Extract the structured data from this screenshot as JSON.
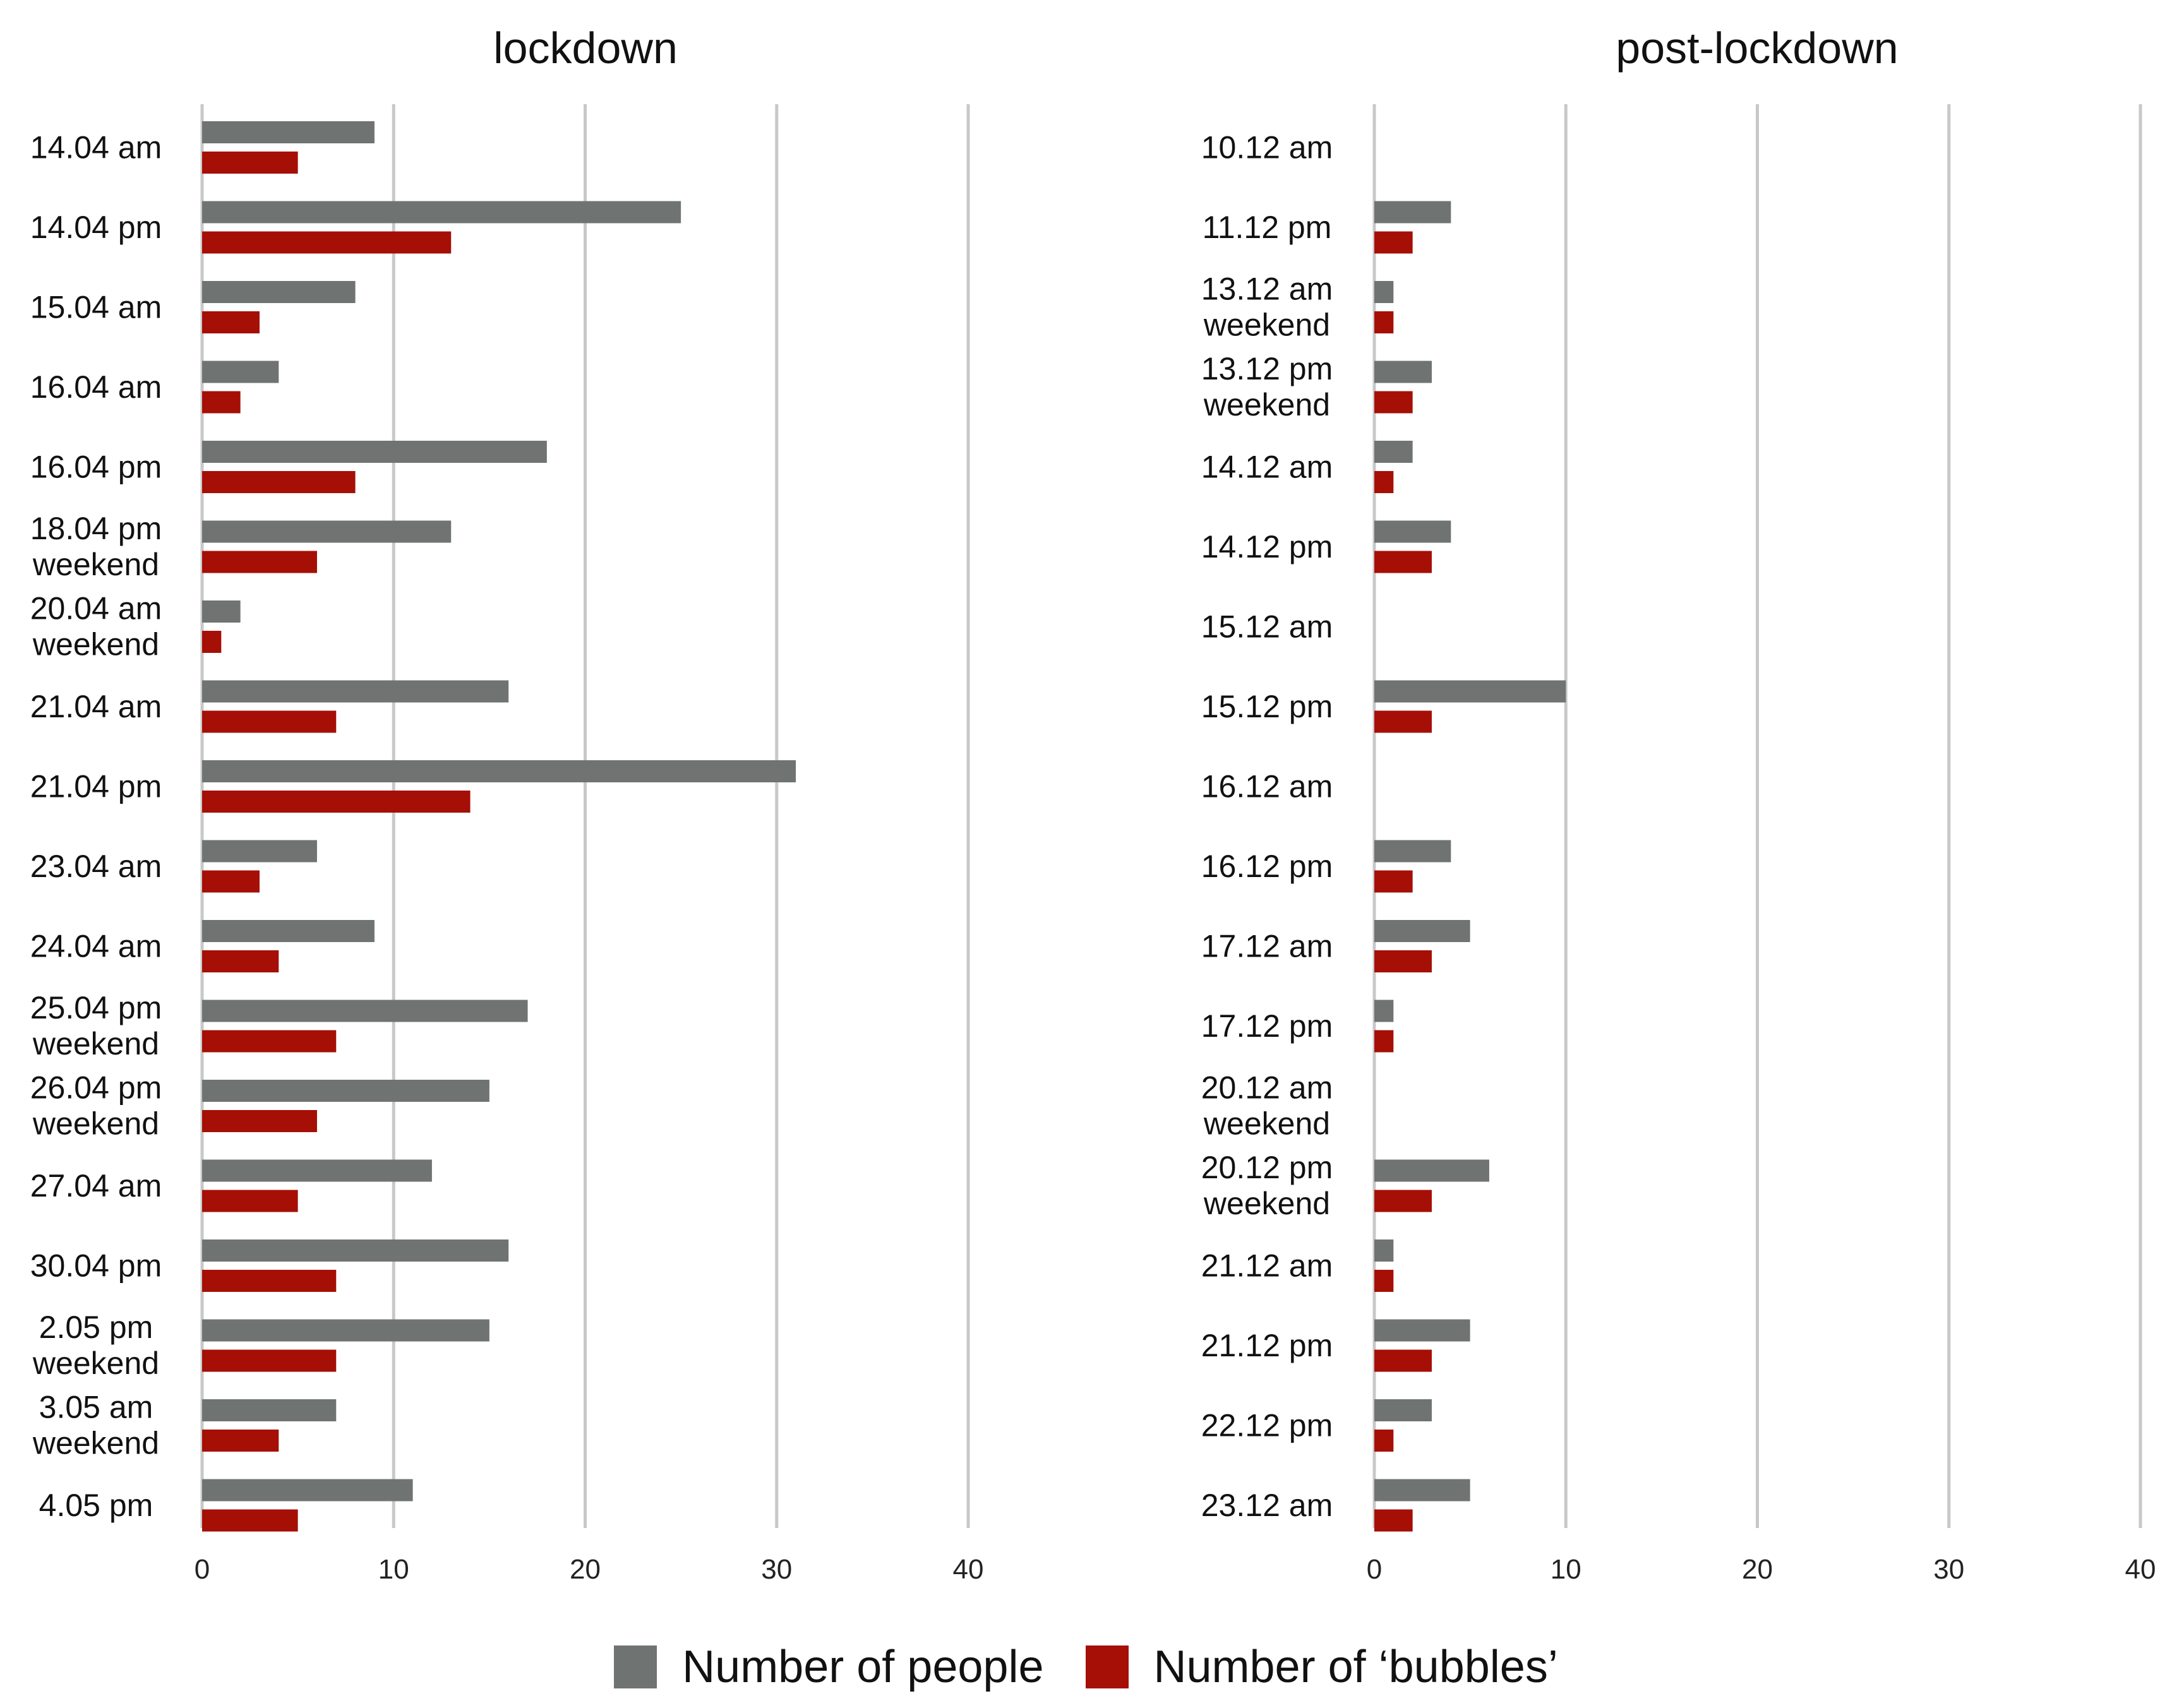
{
  "chart_data": [
    {
      "type": "bar",
      "orientation": "horizontal",
      "title": "lockdown",
      "xlabel": "",
      "ylabel": "",
      "xlim": [
        0,
        40
      ],
      "x_ticks": [
        0,
        10,
        20,
        30,
        40
      ],
      "grid": true,
      "categories": [
        [
          "14.04 am"
        ],
        [
          "14.04 pm"
        ],
        [
          "15.04 am"
        ],
        [
          "16.04 am"
        ],
        [
          "16.04 pm"
        ],
        [
          "18.04 pm",
          "weekend"
        ],
        [
          "20.04 am",
          "weekend"
        ],
        [
          "21.04 am"
        ],
        [
          "21.04 pm"
        ],
        [
          "23.04 am"
        ],
        [
          "24.04 am"
        ],
        [
          "25.04 pm",
          "weekend"
        ],
        [
          "26.04 pm",
          "weekend"
        ],
        [
          "27.04 am"
        ],
        [
          "30.04 pm"
        ],
        [
          "2.05 pm",
          "weekend"
        ],
        [
          "3.05 am",
          "weekend"
        ],
        [
          "4.05 pm"
        ]
      ],
      "series": [
        {
          "name": "Number of people",
          "color": "#6f7371",
          "values": [
            9,
            25,
            8,
            4,
            18,
            13,
            2,
            16,
            31,
            6,
            9,
            17,
            15,
            12,
            16,
            15,
            7,
            11
          ]
        },
        {
          "name": "Number of ‘bubbles’",
          "color": "#a50f06",
          "values": [
            5,
            13,
            3,
            2,
            8,
            6,
            1,
            7,
            14,
            3,
            4,
            7,
            6,
            5,
            7,
            7,
            4,
            5
          ]
        }
      ]
    },
    {
      "type": "bar",
      "orientation": "horizontal",
      "title": "post-lockdown",
      "xlabel": "",
      "ylabel": "",
      "xlim": [
        0,
        40
      ],
      "x_ticks": [
        0,
        10,
        20,
        30,
        40
      ],
      "grid": true,
      "categories": [
        [
          "10.12 am"
        ],
        [
          "11.12 pm"
        ],
        [
          "13.12 am",
          "weekend"
        ],
        [
          "13.12 pm",
          "weekend"
        ],
        [
          "14.12 am"
        ],
        [
          "14.12 pm"
        ],
        [
          "15.12 am"
        ],
        [
          "15.12 pm"
        ],
        [
          "16.12 am"
        ],
        [
          "16.12 pm"
        ],
        [
          "17.12 am"
        ],
        [
          "17.12 pm"
        ],
        [
          "20.12 am",
          "weekend"
        ],
        [
          "20.12 pm",
          "weekend"
        ],
        [
          "21.12 am"
        ],
        [
          "21.12 pm"
        ],
        [
          "22.12 pm"
        ],
        [
          "23.12 am"
        ]
      ],
      "series": [
        {
          "name": "Number of people",
          "color": "#6f7371",
          "values": [
            0,
            4,
            1,
            3,
            2,
            4,
            0,
            10,
            0,
            4,
            5,
            1,
            0,
            6,
            1,
            5,
            3,
            5
          ]
        },
        {
          "name": "Number of ‘bubbles’",
          "color": "#a50f06",
          "values": [
            0,
            2,
            1,
            2,
            1,
            3,
            0,
            3,
            0,
            2,
            3,
            1,
            0,
            3,
            1,
            3,
            1,
            2
          ]
        }
      ]
    }
  ],
  "legend": {
    "items": [
      {
        "label": "Number of people",
        "color": "#6f7371"
      },
      {
        "label": "Number of ‘bubbles’",
        "color": "#a50f06"
      }
    ]
  }
}
